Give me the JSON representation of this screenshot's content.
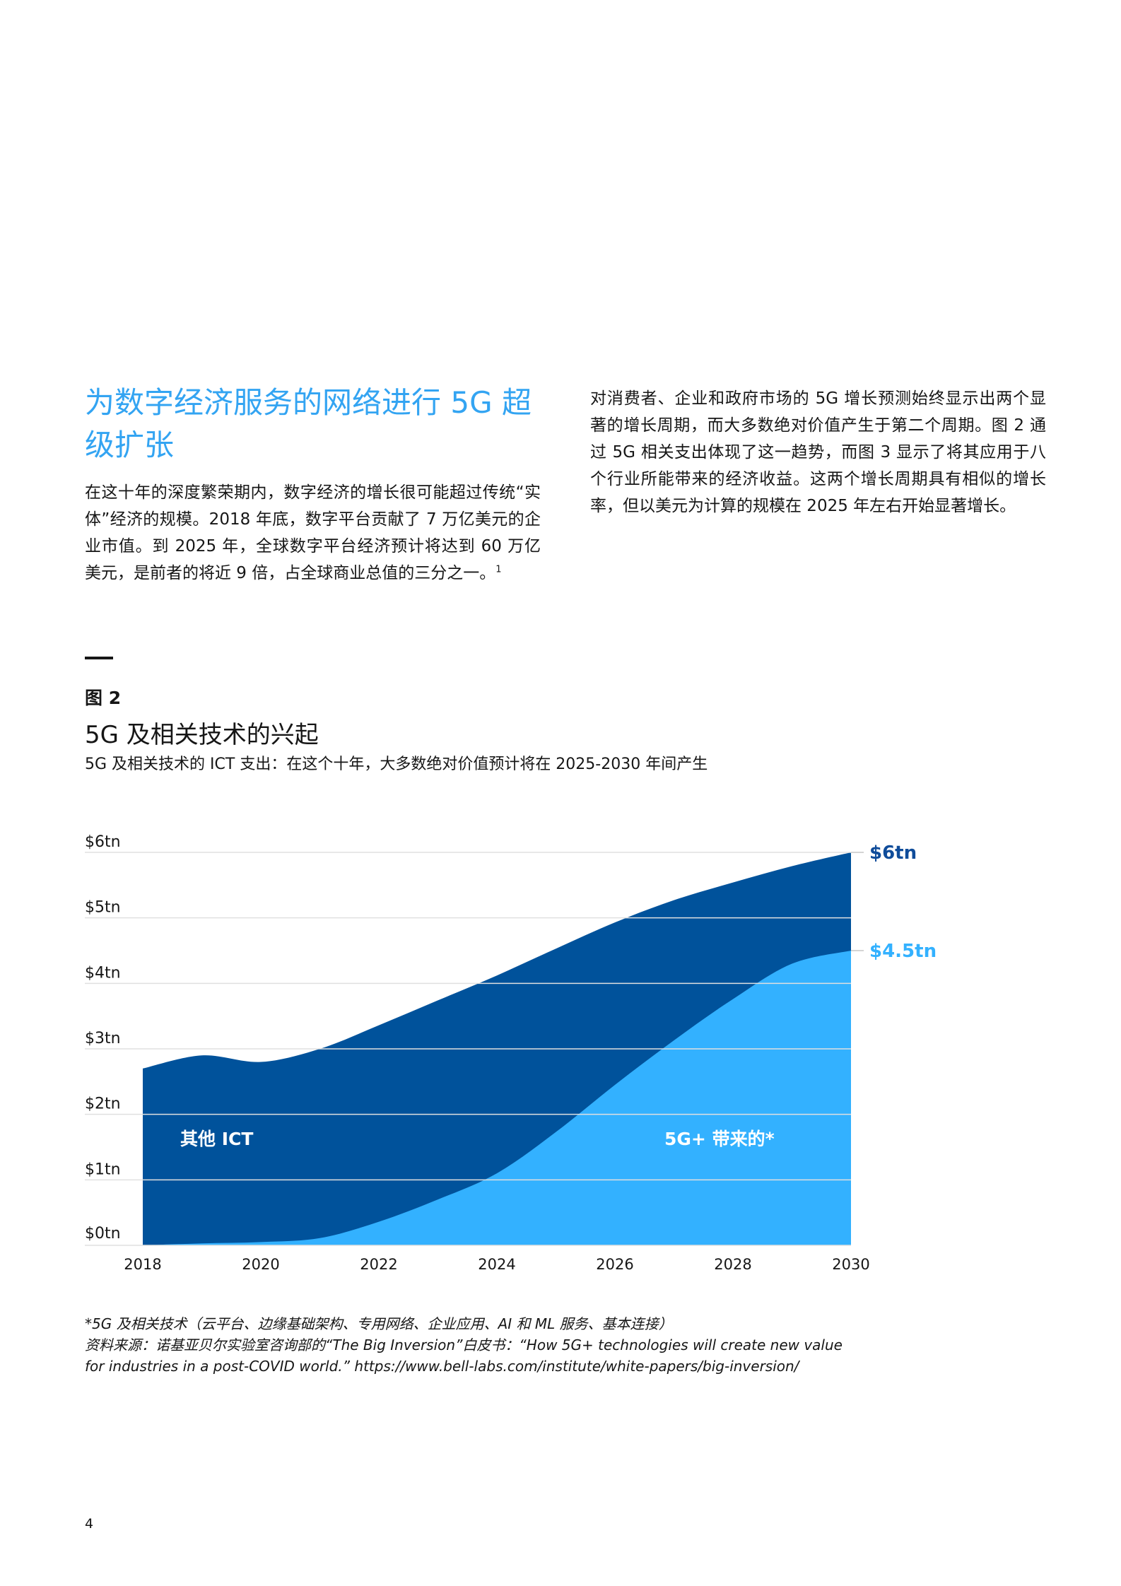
{
  "section": {
    "headline": "为数字经济服务的网络进行 5G 超级扩张",
    "left_paragraph": "在这十年的深度繁荣期内，数字经济的增长很可能超过传统“实体”经济的规模。2018 年底，数字平台贡献了 7 万亿美元的企业市值。到 2025 年，全球数字平台经济预计将达到 60 万亿美元，是前者的将近 9 倍，占全球商业总值的三分之一。",
    "left_footnote_ref": "1",
    "right_paragraph": "对消费者、企业和政府市场的 5G 增长预测始终显示出两个显著的增长周期，而大多数绝对价值产生于第二个周期。图 2 通过 5G 相关支出体现了这一趋势，而图 3 显示了将其应用于八个行业所能带来的经济收益。这两个增长周期具有相似的增长率，但以美元为计算的规模在 2025 年左右开始显著增长。"
  },
  "figure": {
    "label": "图 2",
    "title": "5G 及相关技术的兴起",
    "subtitle": "5G 及相关技术的 ICT 支出：在这个十年，大多数绝对价值预计将在 2025-2030 年间产生"
  },
  "chart_data": {
    "type": "area",
    "stacked": true,
    "x": [
      2018,
      2019,
      2020,
      2021,
      2022,
      2023,
      2024,
      2025,
      2026,
      2027,
      2028,
      2029,
      2030
    ],
    "x_tick_labels": [
      "2018",
      "2020",
      "2022",
      "2024",
      "2026",
      "2028",
      "2030"
    ],
    "y_tick_labels": [
      "$0tn",
      "$1tn",
      "$2tn",
      "$3tn",
      "$4tn",
      "$5tn",
      "$6tn"
    ],
    "ylim": [
      0,
      6
    ],
    "grid": true,
    "series": [
      {
        "name": "5G+ 带来的*",
        "color": "#33b1ff",
        "values": [
          0,
          0.03,
          0.05,
          0.11,
          0.36,
          0.7,
          1.1,
          1.73,
          2.45,
          3.13,
          3.76,
          4.3,
          4.5
        ]
      },
      {
        "name": "其他 ICT",
        "color": "#00529b",
        "values": [
          2.7,
          2.87,
          2.75,
          2.89,
          3.0,
          3.04,
          3.02,
          2.8,
          2.48,
          2.14,
          1.78,
          1.49,
          1.5
        ]
      }
    ],
    "end_labels": [
      {
        "text": "$6tn",
        "color": "#0f4c9a"
      },
      {
        "text": "$4.5tn",
        "color": "#33b1ff"
      }
    ]
  },
  "notes": {
    "line1": "*5G 及相关技术（云平台、边缘基础架构、专用网络、企业应用、AI 和 ML 服务、基本连接）",
    "line2": "资料来源：诺基亚贝尔实验室咨询部的“The Big Inversion”白皮书：“How 5G+ technologies will create new value",
    "line3": "for industries in a post-COVID world.” https://www.bell-labs.com/institute/white-papers/big-inversion/"
  },
  "page_number": "4"
}
